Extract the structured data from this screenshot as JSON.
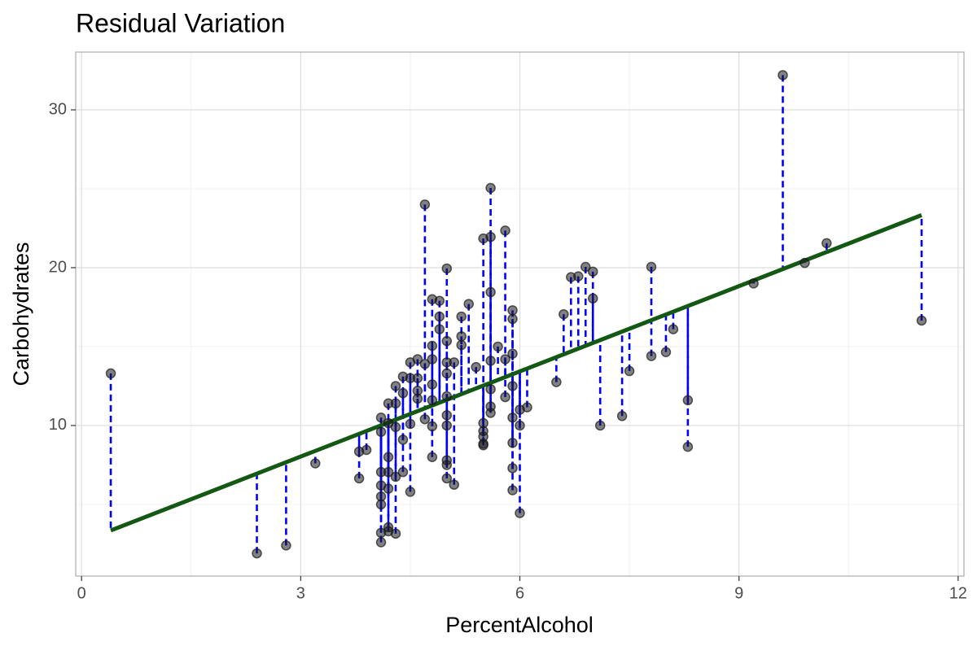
{
  "chart_data": {
    "type": "scatter",
    "title": "Residual Variation",
    "x_label": "PercentAlcohol",
    "y_label": "Carbohydrates",
    "x": [
      0.4,
      2.4,
      2.8,
      3.2,
      3.8,
      3.8,
      3.9,
      4.1,
      4.1,
      4.1,
      4.1,
      4.1,
      4.1,
      4.1,
      4.1,
      4.2,
      4.2,
      4.2,
      4.2,
      4.2,
      4.2,
      4.2,
      4.3,
      4.3,
      4.3,
      4.3,
      4.3,
      4.4,
      4.4,
      4.4,
      4.5,
      4.4,
      4.5,
      4.5,
      4.5,
      4.6,
      4.6,
      4.6,
      4.6,
      4.7,
      4.7,
      4.7,
      4.8,
      4.8,
      4.8,
      4.8,
      4.8,
      4.8,
      4.8,
      4.9,
      4.9,
      4.9,
      5.0,
      5.0,
      5.0,
      5.0,
      5.0,
      5.0,
      5.0,
      5.0,
      5.0,
      5.0,
      5.1,
      5.1,
      5.2,
      5.2,
      5.2,
      5.3,
      5.4,
      5.5,
      5.5,
      5.5,
      5.5,
      5.5,
      5.5,
      5.6,
      5.6,
      5.6,
      5.6,
      5.6,
      5.6,
      5.6,
      5.7,
      5.8,
      5.8,
      5.8,
      5.9,
      5.9,
      5.9,
      5.9,
      5.9,
      5.9,
      5.9,
      5.9,
      6.0,
      6.0,
      6.0,
      6.1,
      6.5,
      6.6,
      6.7,
      6.8,
      6.9,
      7.0,
      7.0,
      7.1,
      7.4,
      7.5,
      7.8,
      7.8,
      8.0,
      8.1,
      8.3,
      8.3,
      9.2,
      9.6,
      9.9,
      10.2,
      11.5
    ],
    "y": [
      13.3,
      1.9,
      2.4,
      7.6,
      8.35,
      6.65,
      8.45,
      9.6,
      10.5,
      7.05,
      6.2,
      5.5,
      5.0,
      3.2,
      2.6,
      7.05,
      8.0,
      10.15,
      11.4,
      6.0,
      3.3,
      3.55,
      12.5,
      11.4,
      6.75,
      3.15,
      9.9,
      13.1,
      12.05,
      7.05,
      5.8,
      9.1,
      14.0,
      13.0,
      10.1,
      12.2,
      14.2,
      13.0,
      11.7,
      13.9,
      24.0,
      10.4,
      18.0,
      11.6,
      14.2,
      15.05,
      12.6,
      9.95,
      8.0,
      17.9,
      16.1,
      16.9,
      19.95,
      15.35,
      14.0,
      13.3,
      11.85,
      10.65,
      10.0,
      7.8,
      7.5,
      6.65,
      6.25,
      14.0,
      15.1,
      15.65,
      16.9,
      17.7,
      13.7,
      21.85,
      10.15,
      9.65,
      9.3,
      8.85,
      8.75,
      25.05,
      21.95,
      18.45,
      14.1,
      12.3,
      11.2,
      10.8,
      15.0,
      22.35,
      14.2,
      11.8,
      17.3,
      16.75,
      14.55,
      12.5,
      10.5,
      8.9,
      7.3,
      5.9,
      10.0,
      11.0,
      4.45,
      11.15,
      12.75,
      17.05,
      19.4,
      19.45,
      20.05,
      19.75,
      18.05,
      10.0,
      10.6,
      13.45,
      20.05,
      14.4,
      14.65,
      16.1,
      11.6,
      8.65,
      19.0,
      32.2,
      20.3,
      21.55,
      16.65
    ],
    "regression": {
      "intercept": 2.63,
      "slope": 1.8
    },
    "point_color": "#1a1a1a",
    "residual_color": "#0000ff",
    "line_color": "#135913",
    "xlim": [
      -0.08,
      12.08
    ],
    "ylim": [
      0.46,
      33.66
    ],
    "xticks": [
      0,
      3,
      6,
      9,
      12
    ],
    "yticks": [
      10,
      20,
      30
    ],
    "grid": true
  }
}
